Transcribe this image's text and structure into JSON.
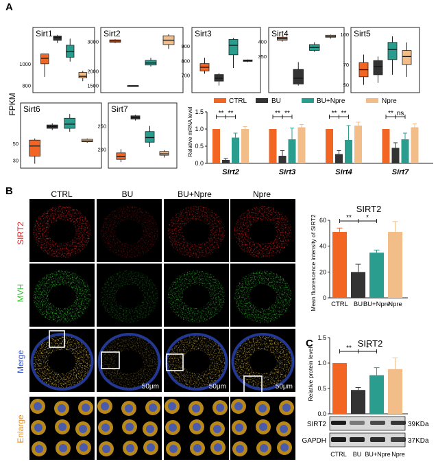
{
  "panel_letters": [
    "A",
    "B",
    "C"
  ],
  "colors": {
    "ctrl": "#f26522",
    "bu": "#333333",
    "bunpre": "#2a9d8f",
    "npre": "#f3bd8a",
    "mvh": "#2ec82e",
    "sirt2_red": "#e02020",
    "merge_blue": "#3050d0",
    "enlarge_orange": "#e88a1a"
  },
  "fpkm_axis_label": "FPKM",
  "condition_labels": {
    "ctrl": "CTRL",
    "bu": "BU",
    "bunpre": "BU+Npre",
    "npre": "Npre"
  },
  "row_labels": {
    "sirt2": "SIRT2",
    "mvh": "MVH",
    "merge": "Merge",
    "enlarge": "Enlarge"
  },
  "scale_bar": "50μm",
  "western": {
    "bands": [
      {
        "name": "SIRT2",
        "kda": "39KDa"
      },
      {
        "name": "GAPDH",
        "kda": "37KDa"
      }
    ],
    "lane_labels": [
      "CTRL",
      "BU",
      "BU+Npre",
      "Npre"
    ]
  },
  "chart_data": [
    {
      "id": "A_fpkm_boxplots",
      "type": "box",
      "panels": [
        {
          "title": "Sirt1",
          "ticks": [
            1000,
            800
          ],
          "ylim": [
            760,
            1270
          ],
          "boxes": [
            {
              "min": 880,
              "q1": 1000,
              "med": 1050,
              "q3": 1090,
              "max": 1090
            },
            {
              "min": 1190,
              "q1": 1215,
              "med": 1240,
              "q3": 1255,
              "max": 1265
            },
            {
              "min": 1020,
              "q1": 1060,
              "med": 1110,
              "q3": 1170,
              "max": 1230
            },
            {
              "min": 840,
              "q1": 870,
              "med": 885,
              "q3": 920,
              "max": 935
            }
          ]
        },
        {
          "title": "Sirt2",
          "ticks": [
            3000,
            2000,
            1500
          ],
          "ylim": [
            1350,
            3250
          ],
          "boxes": [
            {
              "min": 2950,
              "q1": 2980,
              "med": 3020,
              "q3": 3060,
              "max": 3080
            },
            {
              "min": 1470,
              "q1": 1480,
              "med": 1490,
              "q3": 1500,
              "max": 1505
            },
            {
              "min": 2150,
              "q1": 2200,
              "med": 2270,
              "q3": 2360,
              "max": 2450
            },
            {
              "min": 2750,
              "q1": 2900,
              "med": 3050,
              "q3": 3200,
              "max": 3250
            }
          ]
        },
        {
          "title": "Sirt3",
          "ticks": [
            900,
            800,
            700
          ],
          "ylim": [
            600,
            980
          ],
          "boxes": [
            {
              "min": 710,
              "q1": 730,
              "med": 755,
              "q3": 780,
              "max": 820
            },
            {
              "min": 630,
              "q1": 660,
              "med": 680,
              "q3": 705,
              "max": 715
            },
            {
              "min": 750,
              "q1": 840,
              "med": 905,
              "q3": 945,
              "max": 955
            },
            {
              "min": 790,
              "q1": 795,
              "med": 800,
              "q3": 805,
              "max": 808
            }
          ]
        },
        {
          "title": "Sirt4",
          "ticks": [
            400,
            350
          ],
          "ylim": [
            235,
            425
          ],
          "boxes": [
            {
              "min": 400,
              "q1": 405,
              "med": 410,
              "q3": 415,
              "max": 418
            },
            {
              "min": 250,
              "q1": 255,
              "med": 275,
              "q3": 305,
              "max": 330
            },
            {
              "min": 365,
              "q1": 370,
              "med": 380,
              "q3": 390,
              "max": 398
            },
            {
              "min": 410,
              "q1": 415,
              "med": 418,
              "q3": 422,
              "max": 424
            }
          ]
        },
        {
          "title": "Sirt5",
          "ticks": [
            100,
            70,
            50
          ],
          "ylim": [
            45,
            100
          ],
          "boxes": [
            {
              "min": 50,
              "q1": 58,
              "med": 65,
              "q3": 72,
              "max": 80
            },
            {
              "min": 52,
              "q1": 60,
              "med": 68,
              "q3": 74,
              "max": 78
            },
            {
              "min": 60,
              "q1": 75,
              "med": 85,
              "q3": 92,
              "max": 98
            },
            {
              "min": 58,
              "q1": 70,
              "med": 78,
              "q3": 84,
              "max": 92
            }
          ]
        },
        {
          "title": "Sirt6",
          "ticks": [
            50,
            30
          ],
          "ylim": [
            24,
            90
          ],
          "boxes": [
            {
              "min": 26,
              "q1": 35,
              "med": 47,
              "q3": 54,
              "max": 56
            },
            {
              "min": 66,
              "q1": 68,
              "med": 70,
              "q3": 72,
              "max": 74
            },
            {
              "min": 64,
              "q1": 68,
              "med": 73,
              "q3": 80,
              "max": 85
            },
            {
              "min": 51,
              "q1": 52,
              "med": 53,
              "q3": 55,
              "max": 56
            }
          ]
        },
        {
          "title": "Sirt7",
          "ticks": [
            250,
            200
          ],
          "ylim": [
            165,
            285
          ],
          "boxes": [
            {
              "min": 172,
              "q1": 178,
              "med": 184,
              "q3": 192,
              "max": 200
            },
            {
              "min": 262,
              "q1": 265,
              "med": 268,
              "q3": 272,
              "max": 274
            },
            {
              "min": 205,
              "q1": 215,
              "med": 225,
              "q3": 238,
              "max": 250
            },
            {
              "min": 182,
              "q1": 187,
              "med": 190,
              "q3": 195,
              "max": 198
            }
          ]
        }
      ]
    },
    {
      "id": "A_mrna",
      "type": "bar",
      "ylabel": "Relative mRNA level",
      "ylim": [
        0,
        1.5
      ],
      "yticks": [
        "0.0",
        "0.5",
        "1.0",
        "1.5"
      ],
      "categories": [
        "Sirt2",
        "Sirt3",
        "Sirt4",
        "Sirt7"
      ],
      "series": [
        {
          "name": "CTRL",
          "values": [
            1.0,
            1.0,
            1.0,
            1.0
          ],
          "err": [
            0.0,
            0.0,
            0.0,
            0.0
          ]
        },
        {
          "name": "BU",
          "values": [
            0.1,
            0.22,
            0.27,
            0.45
          ],
          "err": [
            0.04,
            0.15,
            0.1,
            0.15
          ]
        },
        {
          "name": "BU+Npre",
          "values": [
            0.75,
            0.7,
            0.68,
            0.7
          ],
          "err": [
            0.13,
            0.33,
            0.42,
            0.18
          ]
        },
        {
          "name": "Npre",
          "values": [
            1.0,
            1.05,
            1.1,
            1.05
          ],
          "err": [
            0.07,
            0.08,
            0.1,
            0.1
          ]
        }
      ],
      "significance": [
        {
          "category": "Sirt2",
          "labels": [
            "**",
            "**"
          ]
        },
        {
          "category": "Sirt3",
          "labels": [
            "**",
            "**"
          ]
        },
        {
          "category": "Sirt4",
          "labels": [
            "**",
            "**"
          ]
        },
        {
          "category": "Sirt7",
          "labels": [
            "**",
            "ns"
          ]
        }
      ]
    },
    {
      "id": "B_fluorescence",
      "type": "bar",
      "title": "SIRT2",
      "ylabel": "Mean fluorescence intensity of SIRT2",
      "ylim": [
        0,
        60
      ],
      "yticks": [
        "0",
        "20",
        "40",
        "60"
      ],
      "categories": [
        "CTRL",
        "BU",
        "BU+Npre",
        "Npre"
      ],
      "values": [
        51,
        20,
        35,
        51
      ],
      "err": [
        3,
        6,
        2,
        8
      ],
      "significance": [
        "**",
        "*"
      ]
    },
    {
      "id": "C_protein",
      "type": "bar",
      "title": "SIRT2",
      "ylabel": "Relative protein level",
      "ylim": [
        0,
        1.5
      ],
      "yticks": [
        "0.0",
        "0.5",
        "1.0",
        "1.5"
      ],
      "categories": [
        "CTRL",
        "BU",
        "BU+Npre",
        "Npre"
      ],
      "values": [
        1.0,
        0.47,
        0.76,
        0.88
      ],
      "err": [
        0.0,
        0.05,
        0.15,
        0.22
      ],
      "significance": [
        "**",
        "*"
      ]
    }
  ]
}
